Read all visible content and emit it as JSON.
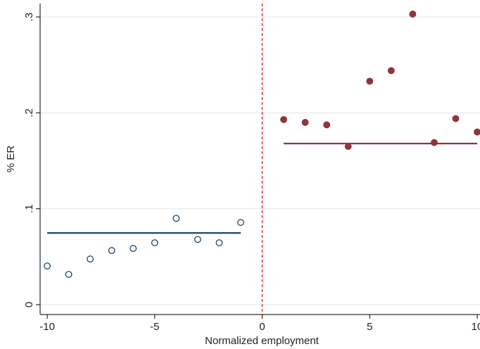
{
  "chart_data": {
    "type": "scatter",
    "x_label": "Normalized employment",
    "y_label": "% ER",
    "xlim": [
      -10.33,
      10.13
    ],
    "ylim": [
      -0.0103,
      0.314
    ],
    "xticks": [
      -10,
      -5,
      0,
      5,
      10
    ],
    "yticks": [
      0,
      {
        "value": 0.1,
        "label": ".1"
      },
      {
        "value": 0.2,
        "label": ".2"
      },
      {
        "value": 0.3,
        "label": ".3"
      }
    ],
    "grid": true,
    "xline": 0,
    "xline_color": "#e31a1c",
    "series": [
      {
        "color": "#1a476f",
        "marker": "hollow",
        "x": [
          -10,
          -9,
          -8,
          -7,
          -6,
          -5,
          -4,
          -3,
          -2,
          -1
        ],
        "values": [
          0.0403,
          0.0315,
          0.0476,
          0.0564,
          0.0586,
          0.0645,
          0.09,
          0.068,
          0.0645,
          0.0857
        ]
      },
      {
        "color": "#90353b",
        "marker": "filled",
        "x": [
          1,
          2,
          3,
          4,
          5,
          6,
          7,
          8,
          9,
          10
        ],
        "values": [
          0.193,
          0.19,
          0.1875,
          0.165,
          0.233,
          0.244,
          0.303,
          0.169,
          0.194,
          0.18
        ]
      }
    ],
    "fit_lines": [
      {
        "color": "#1a476f",
        "x": [
          -10,
          -1
        ],
        "values": [
          0.0747,
          0.0747
        ]
      },
      {
        "color": "#90353b",
        "x": [
          1,
          10
        ],
        "values": [
          0.168,
          0.168
        ]
      }
    ]
  }
}
